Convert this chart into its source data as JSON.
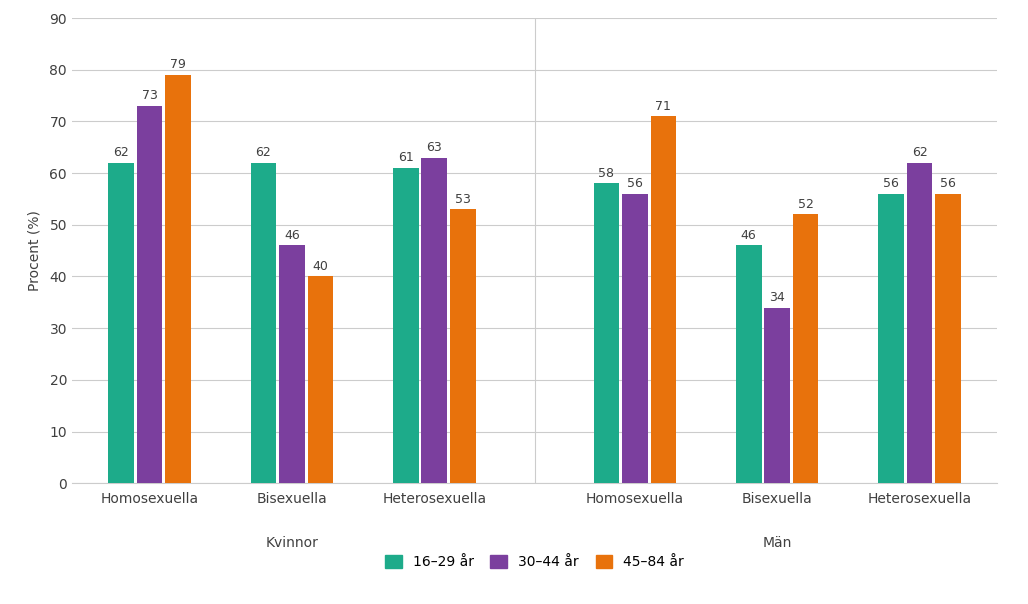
{
  "groups": [
    {
      "label": "Homosexuella",
      "section": "Kvinnor",
      "values": [
        62,
        73,
        79
      ]
    },
    {
      "label": "Bisexuella",
      "section": "Kvinnor",
      "values": [
        62,
        46,
        40
      ]
    },
    {
      "label": "Heterosexuella",
      "section": "Kvinnor",
      "values": [
        61,
        63,
        53
      ]
    },
    {
      "label": "Homosexuella",
      "section": "Män",
      "values": [
        58,
        56,
        71
      ]
    },
    {
      "label": "Bisexuella",
      "section": "Män",
      "values": [
        46,
        34,
        52
      ]
    },
    {
      "label": "Heterosexuella",
      "section": "Män",
      "values": [
        56,
        62,
        56
      ]
    }
  ],
  "series_labels": [
    "16–29 år",
    "30–44 år",
    "45–84 år"
  ],
  "series_colors": [
    "#1dab8a",
    "#7b3f9e",
    "#e8720c"
  ],
  "ylabel": "Procent (%)",
  "ylim": [
    0,
    90
  ],
  "yticks": [
    0,
    10,
    20,
    30,
    40,
    50,
    60,
    70,
    80,
    90
  ],
  "bar_width": 0.22,
  "label_fontsize": 9,
  "tick_fontsize": 10,
  "legend_fontsize": 10,
  "background_color": "#ffffff",
  "grid_color": "#cccccc",
  "text_color": "#404040"
}
